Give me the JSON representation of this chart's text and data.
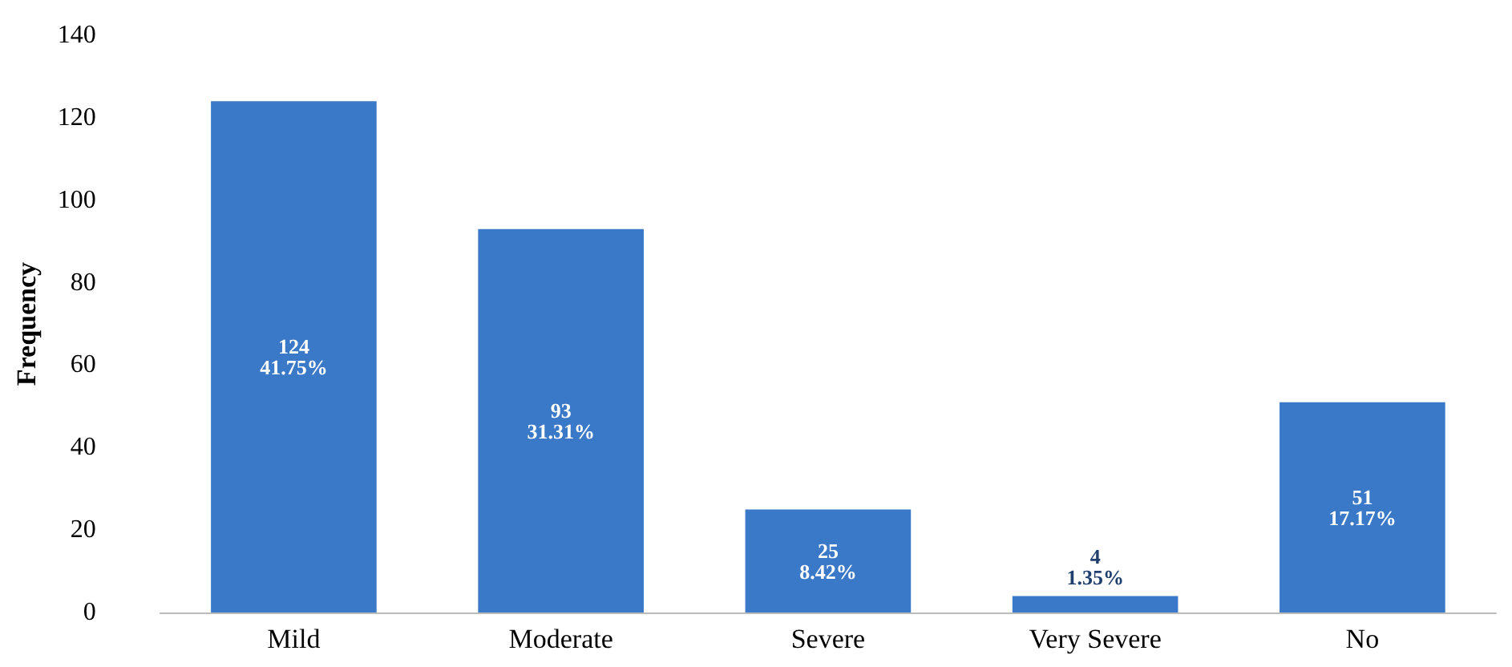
{
  "chart_data": {
    "type": "bar",
    "ylabel": "Frequency",
    "categories": [
      "Mild",
      "Moderate",
      "Severe",
      "Very Severe",
      "No"
    ],
    "values": [
      124,
      93,
      25,
      4,
      51
    ],
    "value_labels": [
      "124\n41.75%",
      "93\n31.31%",
      "25\n8.42%",
      "4\n1.35%",
      "51\n17.17%"
    ],
    "color": "#3a78c8",
    "ylim": [
      0,
      140
    ],
    "yticks": [
      0,
      20,
      40,
      60,
      80,
      100,
      120,
      140
    ],
    "grid": false
  }
}
